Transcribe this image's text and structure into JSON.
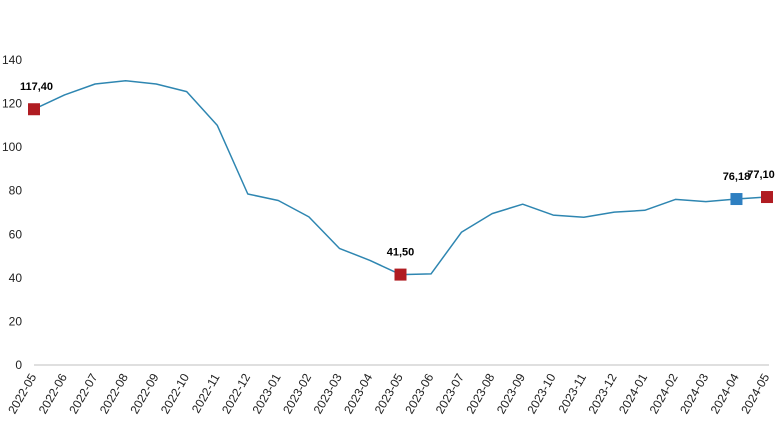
{
  "chart_data": {
    "type": "line",
    "title": "",
    "xlabel": "",
    "ylabel": "",
    "ylim": [
      0,
      140
    ],
    "yticks": [
      0,
      20,
      40,
      60,
      80,
      100,
      120,
      140
    ],
    "grid": false,
    "legend": "none",
    "line_color": "#2e86b1",
    "highlight_colors": {
      "red": "#b01c22",
      "blue": "#2e7fc1"
    },
    "categories": [
      "2022-05",
      "2022-06",
      "2022-07",
      "2022-08",
      "2022-09",
      "2022-10",
      "2022-11",
      "2022-12",
      "2023-01",
      "2023-02",
      "2023-03",
      "2023-04",
      "2023-05",
      "2023-06",
      "2023-07",
      "2023-08",
      "2023-09",
      "2023-10",
      "2023-11",
      "2023-12",
      "2024-01",
      "2024-02",
      "2024-03",
      "2024-04",
      "2024-05"
    ],
    "values": [
      117.4,
      124.0,
      129.0,
      130.5,
      129.0,
      125.5,
      110.0,
      78.5,
      75.5,
      68.0,
      53.5,
      48.0,
      41.5,
      41.8,
      61.0,
      69.5,
      73.8,
      68.8,
      67.8,
      70.2,
      71.0,
      76.0,
      75.0,
      76.18,
      77.1
    ],
    "highlights": [
      {
        "index": 0,
        "label": "117,40",
        "color": "red"
      },
      {
        "index": 12,
        "label": "41,50",
        "color": "red"
      },
      {
        "index": 23,
        "label": "76,18",
        "color": "blue"
      },
      {
        "index": 24,
        "label": "77,10",
        "color": "red"
      }
    ]
  }
}
